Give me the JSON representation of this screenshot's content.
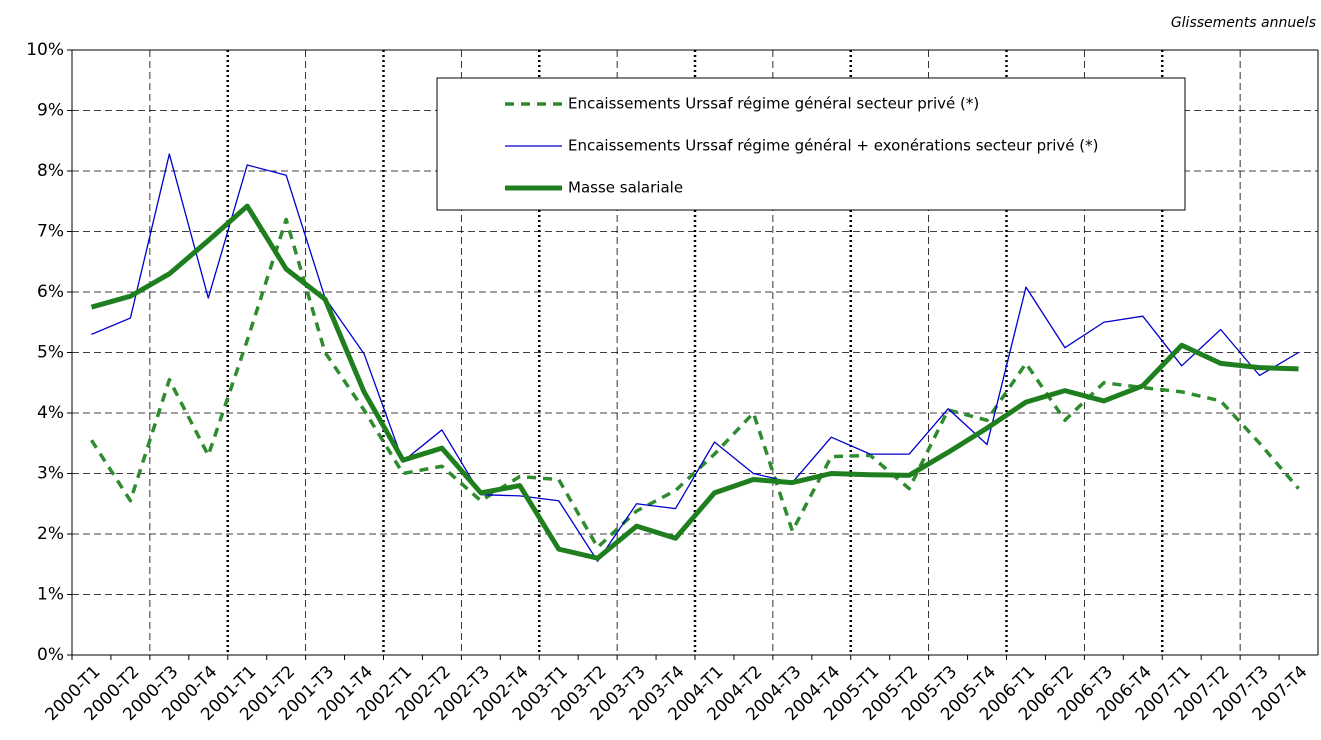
{
  "chart_data": {
    "type": "line",
    "subtitle": "Glissements annuels",
    "categories": [
      "2000-T1",
      "2000-T2",
      "2000-T3",
      "2000-T4",
      "2001-T1",
      "2001-T2",
      "2001-T3",
      "2001-T4",
      "2002-T1",
      "2002-T2",
      "2002-T3",
      "2002-T4",
      "2003-T1",
      "2003-T2",
      "2003-T3",
      "2003-T4",
      "2004-T1",
      "2004-T2",
      "2004-T3",
      "2004-T4",
      "2005-T1",
      "2005-T2",
      "2005-T3",
      "2005-T4",
      "2006-T1",
      "2006-T2",
      "2006-T3",
      "2006-T4",
      "2007-T1",
      "2007-T2",
      "2007-T3",
      "2007-T4"
    ],
    "series": [
      {
        "name": "Encaissements Urssaf régime général secteur privé (*)",
        "color": "#2e8b2e",
        "style": "dashed",
        "values": [
          3.55,
          2.55,
          4.55,
          3.3,
          5.2,
          7.2,
          5.0,
          4.05,
          3.0,
          3.12,
          2.55,
          2.95,
          2.9,
          1.78,
          2.38,
          2.72,
          3.32,
          4.0,
          2.05,
          3.28,
          3.3,
          2.75,
          4.05,
          3.88,
          4.82,
          3.88,
          4.5,
          4.42,
          4.35,
          4.2,
          3.5,
          2.75
        ]
      },
      {
        "name": "Encaissements Urssaf régime général + exonérations secteur privé (*)",
        "color": "#0000cc",
        "style": "thin",
        "values": [
          5.3,
          5.57,
          8.28,
          5.9,
          8.1,
          7.93,
          5.9,
          4.98,
          3.2,
          3.72,
          2.65,
          2.63,
          2.55,
          1.55,
          2.5,
          2.42,
          3.52,
          3.0,
          2.85,
          3.6,
          3.32,
          3.32,
          4.07,
          3.48,
          6.08,
          5.08,
          5.5,
          5.6,
          4.78,
          5.38,
          4.62,
          5.0
        ]
      },
      {
        "name": "Masse salariale",
        "color": "#1f7f1f",
        "style": "thick",
        "values": [
          5.75,
          5.93,
          6.3,
          6.85,
          7.42,
          6.38,
          5.88,
          4.35,
          3.22,
          3.42,
          2.68,
          2.8,
          1.75,
          1.6,
          2.13,
          1.93,
          2.68,
          2.9,
          2.85,
          3.0,
          2.98,
          2.97,
          3.35,
          3.75,
          4.18,
          4.37,
          4.2,
          4.45,
          5.12,
          4.82,
          4.75,
          4.73
        ]
      }
    ],
    "ylim": [
      0,
      10
    ],
    "yticks": [
      {
        "value": 0,
        "label": "0%"
      },
      {
        "value": 1,
        "label": "1%"
      },
      {
        "value": 2,
        "label": "2%"
      },
      {
        "value": 3,
        "label": "3%"
      },
      {
        "value": 4,
        "label": "4%"
      },
      {
        "value": 5,
        "label": "5%"
      },
      {
        "value": 6,
        "label": "6%"
      },
      {
        "value": 7,
        "label": "7%"
      },
      {
        "value": 8,
        "label": "8%"
      },
      {
        "value": 9,
        "label": "9%"
      },
      {
        "value": 10,
        "label": "10%"
      }
    ],
    "grid": true
  }
}
